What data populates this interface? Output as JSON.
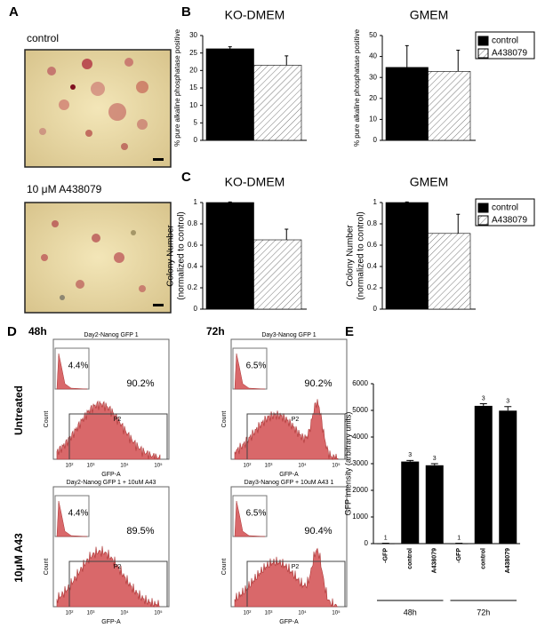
{
  "panel_labels": [
    "A",
    "B",
    "C",
    "D",
    "E"
  ],
  "panel_a": {
    "captions": [
      "control",
      "10 μM A438079"
    ]
  },
  "panel_d": {
    "time_labels": [
      "48h",
      "72h"
    ],
    "row_labels": [
      "Untreated",
      "10μM A43"
    ],
    "xlabel": "GFP-A",
    "ylabel": "Count",
    "xtick_labels": [
      "10²",
      "10³",
      "10⁴",
      "10⁵"
    ],
    "plots": [
      {
        "title": "Day2-Nanog GFP 1",
        "inset_percent": "4.4%",
        "percent": "90.2%",
        "gate": "P2"
      },
      {
        "title": "Day3-Nanog GFP 1",
        "inset_percent": "6.5%",
        "percent": "90.2%",
        "gate": "P2"
      },
      {
        "title": "Day2-Nanog GFP 1 + 10uM A43",
        "inset_percent": "4.4%",
        "percent": "89.5%",
        "gate": "P2"
      },
      {
        "title": "Day3-Nanog GFP + 10uM A43 1",
        "inset_percent": "6.5%",
        "percent": "90.4%",
        "gate": "P2"
      }
    ]
  },
  "chart_data": [
    {
      "type": "bar",
      "title": "KO-DMEM",
      "ylabel": "% pure alkaline phosphatase positive",
      "ylim": [
        0,
        30
      ],
      "yticks": [
        0,
        5,
        10,
        15,
        20,
        25,
        30
      ],
      "series": [
        {
          "color": "#000000",
          "values": [
            26.2
          ],
          "errors": [
            0.6
          ]
        },
        {
          "color": "#ffffff",
          "hatch": true,
          "values": [
            21.5
          ],
          "errors": [
            2.7
          ]
        }
      ]
    },
    {
      "type": "bar",
      "title": "GMEM",
      "ylabel": "% pure alkaline phosphatase positive",
      "ylim": [
        0,
        50
      ],
      "yticks": [
        0,
        10,
        20,
        30,
        40,
        50
      ],
      "legend": "upper right",
      "series": [
        {
          "name": "control",
          "color": "#000000",
          "values": [
            34.8
          ],
          "errors": [
            10.4
          ]
        },
        {
          "name": "A438079",
          "color": "#ffffff",
          "hatch": true,
          "values": [
            32.9
          ],
          "errors": [
            10.1
          ]
        }
      ]
    },
    {
      "type": "bar",
      "title": "KO-DMEM",
      "ylabel": [
        "Colony Number",
        "(normalized to control)"
      ],
      "ylim": [
        0,
        1
      ],
      "yticks": [
        0,
        0.2,
        0.4,
        0.6,
        0.8,
        1
      ],
      "series": [
        {
          "color": "#000000",
          "values": [
            1
          ],
          "errors": [
            0.005
          ]
        },
        {
          "color": "#ffffff",
          "hatch": true,
          "values": [
            0.65
          ],
          "errors": [
            0.1
          ]
        }
      ]
    },
    {
      "type": "bar",
      "title": "GMEM",
      "ylabel": [
        "Colony Number",
        "(normalized to control)"
      ],
      "ylim": [
        0,
        1
      ],
      "yticks": [
        0,
        0.2,
        0.4,
        0.6,
        0.8,
        1
      ],
      "legend": "upper right",
      "series": [
        {
          "name": "control",
          "color": "#000000",
          "values": [
            1
          ],
          "errors": [
            0.005
          ]
        },
        {
          "name": "A438079",
          "color": "#ffffff",
          "hatch": true,
          "values": [
            0.71
          ],
          "errors": [
            0.18
          ]
        }
      ]
    },
    {
      "type": "bar",
      "ylabel": "GFP intensity (arbitrary units)",
      "ylim": [
        0,
        6000
      ],
      "yticks": [
        0,
        1000,
        2000,
        3000,
        4000,
        5000,
        6000
      ],
      "categories": [
        "-GFP",
        "control",
        "A438079",
        "-GFP",
        "control",
        "A438079"
      ],
      "values": [
        15,
        3080,
        2940,
        15,
        5170,
        4990
      ],
      "errors": [
        0,
        40,
        60,
        0,
        80,
        150
      ],
      "n": [
        1,
        3,
        3,
        1,
        3,
        3
      ],
      "groups": [
        "48h",
        "72h"
      ],
      "color": "#000000"
    }
  ]
}
